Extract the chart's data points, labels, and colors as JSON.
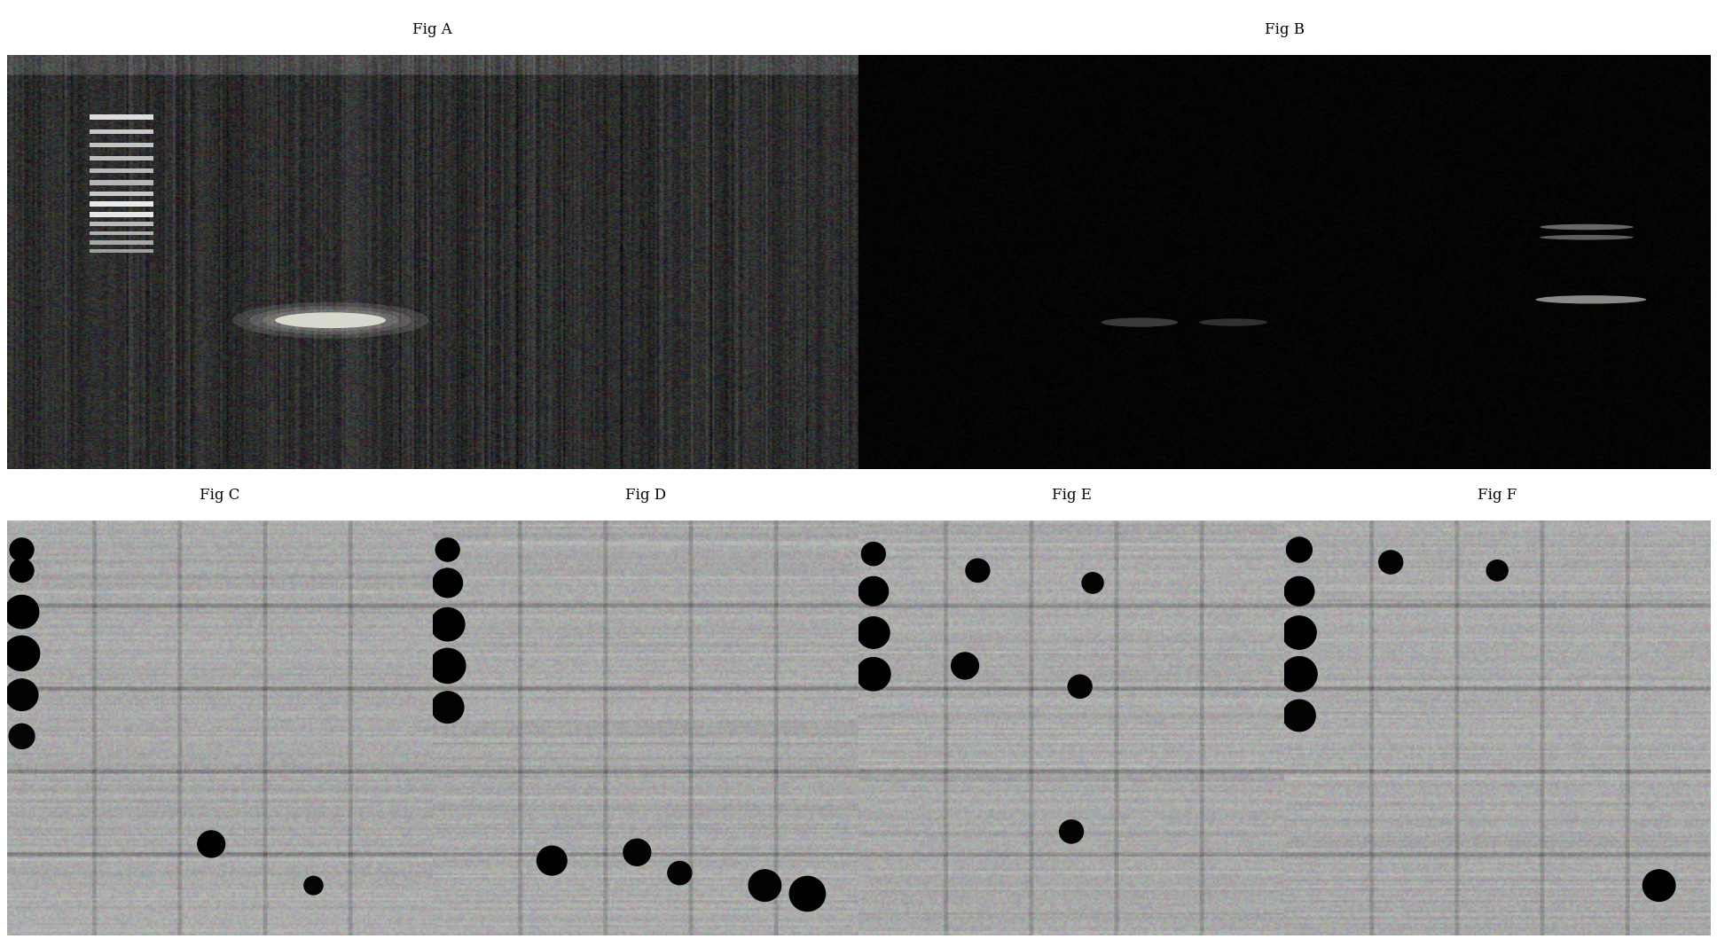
{
  "fig_labels": [
    "Fig A",
    "Fig B",
    "Fig C",
    "Fig D",
    "Fig E",
    "Fig F"
  ],
  "label_fontsize": 12,
  "background_color": "#ffffff",
  "border_color": "#000000",
  "gel_A_bg_low": 25,
  "gel_A_bg_high": 65,
  "gel_B_bg_low": 0,
  "gel_B_bg_high": 10,
  "gel_CDEF_bg_low": 155,
  "gel_CDEF_bg_high": 185
}
